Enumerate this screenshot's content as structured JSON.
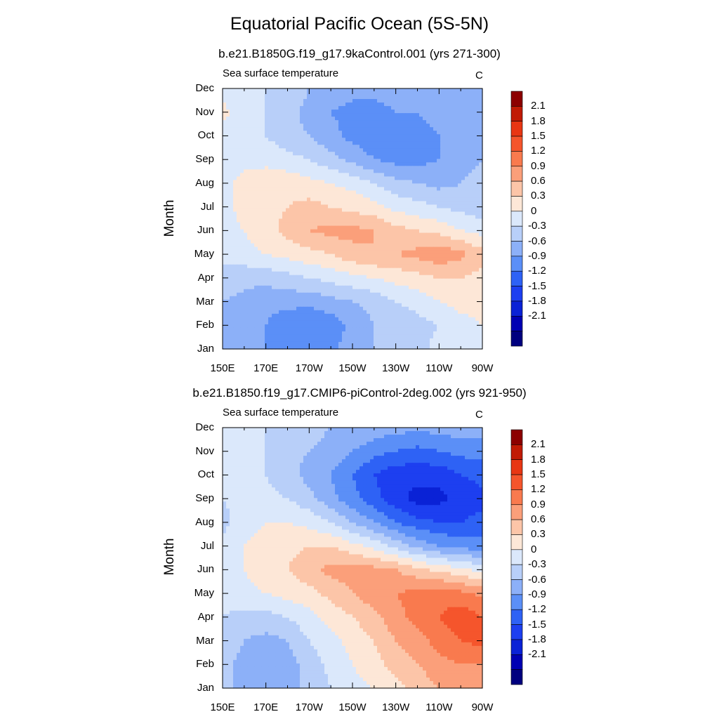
{
  "figure": {
    "title": "Equatorial Pacific Ocean (5S-5N)",
    "colormap": [
      "#00007f",
      "#0000b3",
      "#0a22d6",
      "#1d3ff0",
      "#2e62f5",
      "#5b8ff7",
      "#8cb0f8",
      "#b8cff9",
      "#dbe8fb",
      "#fde7d7",
      "#fcc5a8",
      "#fb9f7a",
      "#f97a4e",
      "#f5552c",
      "#e83613",
      "#c11b05",
      "#8c0000"
    ],
    "levels": [
      "2.1",
      "1.8",
      "1.5",
      "1.2",
      "0.9",
      "0.6",
      "0.3",
      "0",
      "-0.3",
      "-0.6",
      "-0.9",
      "-1.2",
      "-1.5",
      "-1.8",
      "-2.1"
    ]
  },
  "chart_data": [
    {
      "type": "heatmap",
      "title": "b.e21.B1850G.f19_g17.9kaControl.001 (yrs 271-300)",
      "variable": "Sea surface temperature",
      "units": "C",
      "xlabel": "",
      "ylabel": "Month",
      "x_ticks": [
        "150E",
        "170E",
        "170W",
        "150W",
        "130W",
        "110W",
        "90W"
      ],
      "y_ticks": [
        "Jan",
        "Feb",
        "Mar",
        "Apr",
        "May",
        "Jun",
        "Jul",
        "Aug",
        "Sep",
        "Oct",
        "Nov",
        "Dec"
      ],
      "x_range_lon": [
        150,
        270
      ],
      "grid": [
        [
          -0.4,
          -0.5,
          -0.6,
          -0.6,
          -0.8,
          -0.7,
          -0.4,
          -0.3,
          -0.2,
          -0.1,
          0.1,
          0.2,
          0.2
        ],
        [
          -0.4,
          -0.5,
          -0.6,
          -0.8,
          -0.9,
          -0.8,
          -0.5,
          -0.3,
          -0.2,
          -0.1,
          0.0,
          0.2,
          0.3
        ],
        [
          -0.3,
          -0.4,
          -0.5,
          -0.5,
          -0.5,
          -0.4,
          -0.3,
          -0.2,
          0.0,
          0.1,
          0.3,
          0.4,
          0.4
        ],
        [
          -0.1,
          -0.2,
          -0.2,
          -0.1,
          0.0,
          0.1,
          0.2,
          0.3,
          0.4,
          0.5,
          0.6,
          0.6,
          0.5
        ],
        [
          0.1,
          0.2,
          0.3,
          0.4,
          0.5,
          0.6,
          0.8,
          0.9,
          0.9,
          1.0,
          1.1,
          1.0,
          0.7
        ],
        [
          0.2,
          0.3,
          0.5,
          0.7,
          0.9,
          1.0,
          1.0,
          0.9,
          0.7,
          0.6,
          0.5,
          0.3,
          0.2
        ],
        [
          0.2,
          0.4,
          0.5,
          0.6,
          0.7,
          0.6,
          0.5,
          0.4,
          0.2,
          0.1,
          0.0,
          -0.1,
          -0.2
        ],
        [
          0.2,
          0.4,
          0.5,
          0.5,
          0.4,
          0.3,
          0.2,
          0.0,
          -0.2,
          -0.3,
          -0.4,
          -0.3,
          -0.2
        ],
        [
          0.1,
          0.2,
          0.2,
          0.1,
          0.0,
          -0.2,
          -0.4,
          -0.6,
          -0.7,
          -0.7,
          -0.6,
          -0.4,
          -0.3
        ],
        [
          0.2,
          0.1,
          0.0,
          -0.2,
          -0.3,
          -0.5,
          -0.7,
          -0.8,
          -0.8,
          -0.7,
          -0.6,
          -0.5,
          -0.4
        ],
        [
          0.4,
          0.1,
          0.0,
          -0.2,
          -0.4,
          -0.6,
          -0.7,
          -0.7,
          -0.6,
          -0.6,
          -0.5,
          -0.4,
          -0.3
        ],
        [
          0.2,
          0.1,
          0.0,
          -0.1,
          -0.3,
          -0.4,
          -0.5,
          -0.5,
          -0.5,
          -0.4,
          -0.4,
          -0.3,
          -0.3
        ]
      ]
    },
    {
      "type": "heatmap",
      "title": "b.e21.B1850.f19_g17.CMIP6-piControl-2deg.002 (yrs 921-950)",
      "variable": "Sea surface temperature",
      "units": "C",
      "xlabel": "",
      "ylabel": "Month",
      "x_ticks": [
        "150E",
        "170E",
        "170W",
        "150W",
        "130W",
        "110W",
        "90W"
      ],
      "y_ticks": [
        "Jan",
        "Feb",
        "Mar",
        "Apr",
        "May",
        "Jun",
        "Jul",
        "Aug",
        "Sep",
        "Oct",
        "Nov",
        "Dec"
      ],
      "x_range_lon": [
        150,
        270
      ],
      "grid": [
        [
          -0.2,
          -0.4,
          -0.5,
          -0.4,
          -0.2,
          0.0,
          0.2,
          0.3,
          0.5,
          0.7,
          0.9,
          0.9,
          0.9
        ],
        [
          -0.2,
          -0.4,
          -0.5,
          -0.4,
          -0.2,
          0.1,
          0.3,
          0.5,
          0.7,
          0.9,
          1.1,
          1.2,
          1.2
        ],
        [
          -0.1,
          -0.3,
          -0.4,
          -0.3,
          0.0,
          0.2,
          0.4,
          0.6,
          0.9,
          1.1,
          1.3,
          1.5,
          1.6
        ],
        [
          0.0,
          -0.1,
          -0.1,
          0.0,
          0.2,
          0.4,
          0.6,
          0.8,
          1.1,
          1.3,
          1.5,
          1.7,
          1.5
        ],
        [
          0.1,
          0.2,
          0.3,
          0.4,
          0.5,
          0.7,
          0.9,
          1.1,
          1.2,
          1.3,
          1.4,
          1.3,
          1.1
        ],
        [
          0.2,
          0.3,
          0.5,
          0.6,
          0.8,
          1.0,
          1.0,
          1.0,
          0.9,
          0.7,
          0.5,
          0.4,
          0.2
        ],
        [
          0.1,
          0.3,
          0.4,
          0.5,
          0.6,
          0.6,
          0.4,
          0.2,
          -0.1,
          -0.4,
          -0.6,
          -0.7,
          -0.8
        ],
        [
          -0.1,
          0.2,
          0.3,
          0.3,
          0.2,
          0.0,
          -0.3,
          -0.6,
          -0.9,
          -1.1,
          -1.2,
          -1.2,
          -1.1
        ],
        [
          0.0,
          0.1,
          0.1,
          0.0,
          -0.2,
          -0.5,
          -0.8,
          -1.1,
          -1.4,
          -1.6,
          -1.6,
          -1.4,
          -1.3
        ],
        [
          0.1,
          0.1,
          0.0,
          -0.2,
          -0.4,
          -0.6,
          -0.9,
          -1.2,
          -1.4,
          -1.4,
          -1.4,
          -1.2,
          -1.1
        ],
        [
          0.1,
          0.1,
          0.0,
          -0.2,
          -0.3,
          -0.4,
          -0.6,
          -0.8,
          -0.9,
          -1.0,
          -0.9,
          -0.8,
          -0.8
        ],
        [
          0.1,
          0.1,
          0.0,
          -0.1,
          -0.2,
          -0.3,
          -0.3,
          -0.4,
          -0.5,
          -0.5,
          -0.5,
          -0.4,
          -0.4
        ]
      ]
    }
  ]
}
